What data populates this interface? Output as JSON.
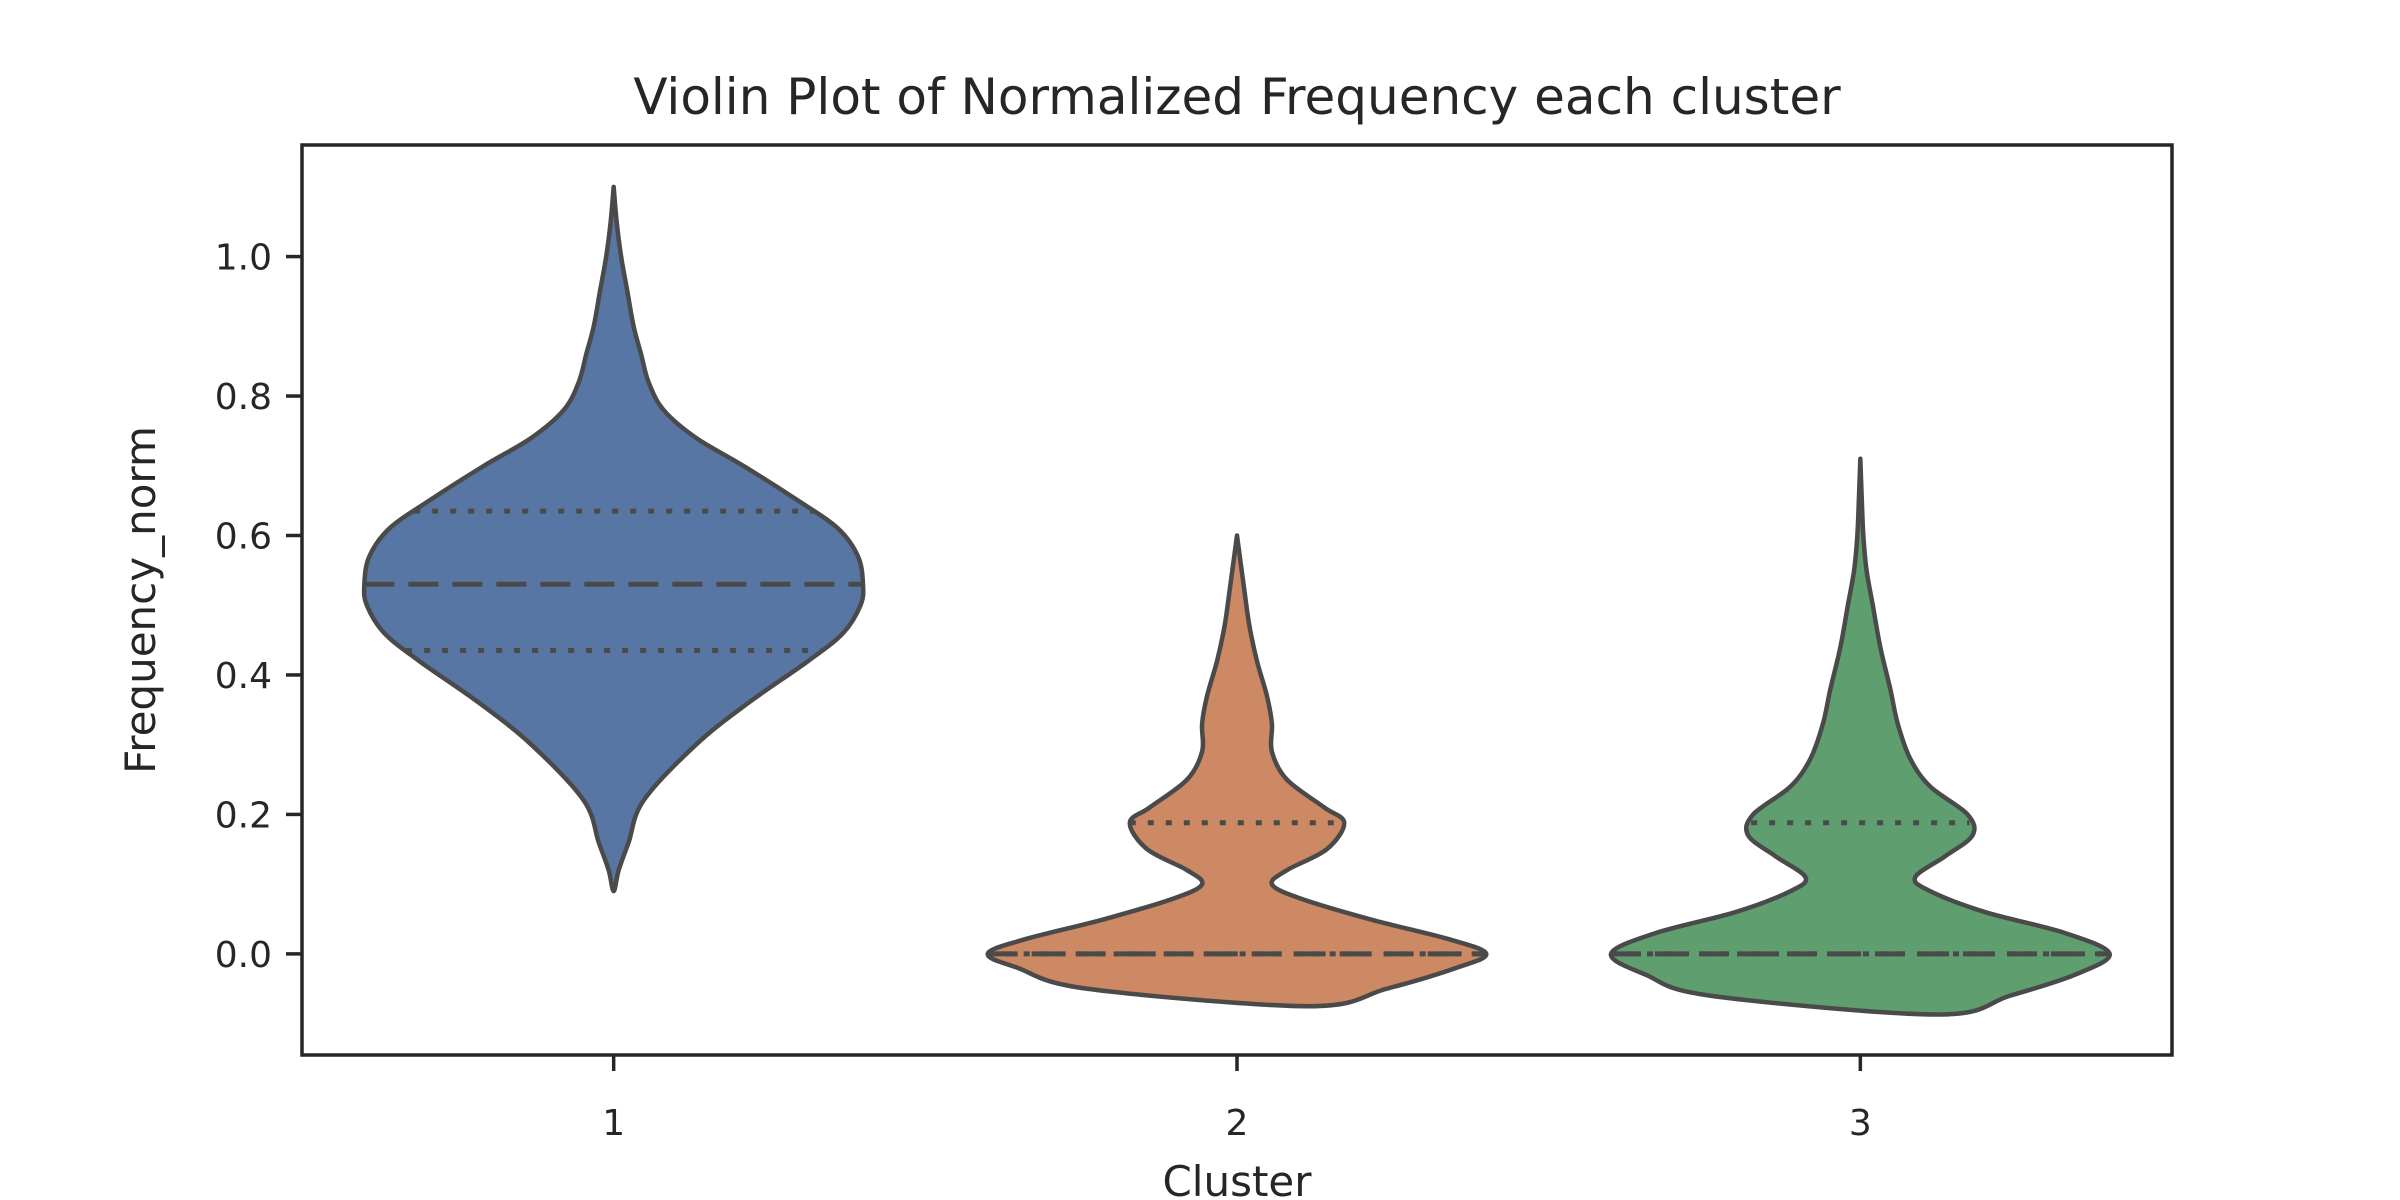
{
  "chart_data": {
    "type": "violin",
    "title": "Violin Plot of Normalized Frequency each cluster",
    "xlabel": "Cluster",
    "ylabel": "Frequency_norm",
    "categories": [
      "1",
      "2",
      "3"
    ],
    "ylim": [
      -0.145,
      1.16
    ],
    "yticks": [
      {
        "value": 0.0,
        "label": "0.0"
      },
      {
        "value": 0.2,
        "label": "0.2"
      },
      {
        "value": 0.4,
        "label": "0.4"
      },
      {
        "value": 0.6,
        "label": "0.6"
      },
      {
        "value": 0.8,
        "label": "0.8"
      },
      {
        "value": 1.0,
        "label": "1.0"
      }
    ],
    "grid": false,
    "violins": [
      {
        "category": "1",
        "color": "#5876a4",
        "min": 0.09,
        "max": 1.1,
        "q1": 0.435,
        "median": 0.53,
        "q3": 0.635,
        "density": [
          [
            0.09,
            0.0
          ],
          [
            0.12,
            0.02
          ],
          [
            0.16,
            0.06
          ],
          [
            0.22,
            0.12
          ],
          [
            0.3,
            0.33
          ],
          [
            0.36,
            0.54
          ],
          [
            0.42,
            0.78
          ],
          [
            0.46,
            0.92
          ],
          [
            0.5,
            0.99
          ],
          [
            0.53,
            1.0
          ],
          [
            0.57,
            0.98
          ],
          [
            0.61,
            0.9
          ],
          [
            0.65,
            0.74
          ],
          [
            0.7,
            0.52
          ],
          [
            0.74,
            0.33
          ],
          [
            0.78,
            0.2
          ],
          [
            0.82,
            0.14
          ],
          [
            0.86,
            0.11
          ],
          [
            0.9,
            0.08
          ],
          [
            0.95,
            0.055
          ],
          [
            1.0,
            0.03
          ],
          [
            1.05,
            0.012
          ],
          [
            1.1,
            0.0
          ]
        ]
      },
      {
        "category": "2",
        "color": "#cc8963",
        "min": -0.075,
        "max": 0.6,
        "q1": 0.0,
        "median": 0.0,
        "q3": 0.188,
        "density": [
          [
            -0.075,
            0.29
          ],
          [
            -0.05,
            0.6
          ],
          [
            -0.02,
            0.88
          ],
          [
            0.0,
            1.0
          ],
          [
            0.02,
            0.86
          ],
          [
            0.05,
            0.53
          ],
          [
            0.08,
            0.25
          ],
          [
            0.1,
            0.14
          ],
          [
            0.12,
            0.2
          ],
          [
            0.15,
            0.36
          ],
          [
            0.188,
            0.43
          ],
          [
            0.21,
            0.35
          ],
          [
            0.25,
            0.2
          ],
          [
            0.29,
            0.14
          ],
          [
            0.33,
            0.14
          ],
          [
            0.37,
            0.12
          ],
          [
            0.42,
            0.08
          ],
          [
            0.47,
            0.05
          ],
          [
            0.52,
            0.03
          ],
          [
            0.56,
            0.015
          ],
          [
            0.6,
            0.0
          ]
        ]
      },
      {
        "category": "3",
        "color": "#5f9e6e",
        "min": -0.087,
        "max": 0.71,
        "q1": 0.0,
        "median": 0.0,
        "q3": 0.188,
        "density": [
          [
            -0.087,
            0.31
          ],
          [
            -0.06,
            0.6
          ],
          [
            -0.03,
            0.86
          ],
          [
            0.0,
            1.0
          ],
          [
            0.03,
            0.82
          ],
          [
            0.06,
            0.5
          ],
          [
            0.09,
            0.28
          ],
          [
            0.11,
            0.22
          ],
          [
            0.14,
            0.34
          ],
          [
            0.17,
            0.45
          ],
          [
            0.2,
            0.43
          ],
          [
            0.24,
            0.28
          ],
          [
            0.28,
            0.2
          ],
          [
            0.33,
            0.15
          ],
          [
            0.38,
            0.12
          ],
          [
            0.44,
            0.08
          ],
          [
            0.5,
            0.05
          ],
          [
            0.55,
            0.025
          ],
          [
            0.6,
            0.012
          ],
          [
            0.65,
            0.006
          ],
          [
            0.71,
            0.0
          ]
        ]
      }
    ]
  }
}
